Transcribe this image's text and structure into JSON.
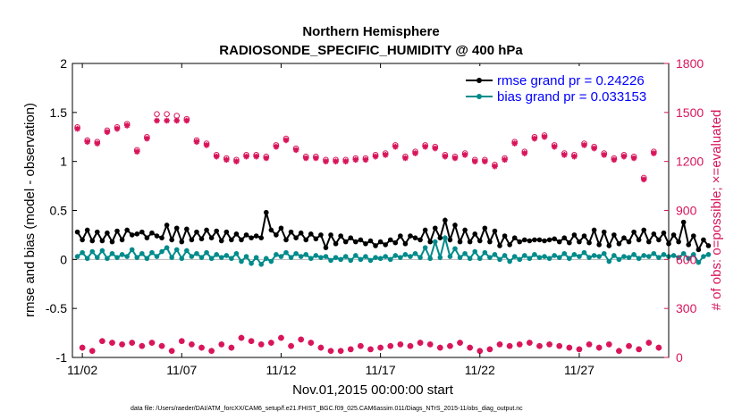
{
  "chart_data": {
    "type": "line",
    "title": "Northern Hemisphere",
    "subtitle": "RADIOSONDE_SPECIFIC_HUMIDITY @ 400 hPa",
    "xlabel": "Nov.01,2015 00:00:00 start",
    "ylabel": "rmse and bias (model - observation)",
    "y2label": "# of obs: o=possible; ×=evaluated",
    "footnote": "data file: /Users/raeder/DAI/ATM_forcXX/CAM6_setup/f.e21.FHIST_BGC.f09_025.CAM6assim.011/Diags_NTrS_2015-11/obs_diag_output.nc",
    "xlim": [
      0.5,
      30.5
    ],
    "ylim": [
      -1,
      2
    ],
    "y2lim": [
      0,
      1800
    ],
    "x_ticks": [
      1,
      6,
      11,
      16,
      21,
      26
    ],
    "x_tick_labels": [
      "11/02",
      "11/07",
      "11/12",
      "11/17",
      "11/22",
      "11/27"
    ],
    "y_ticks": [
      "-1",
      "-0.5",
      "0",
      "0.5",
      "1",
      "1.5",
      "2"
    ],
    "y2_ticks": [
      "0",
      "300",
      "600",
      "900",
      "1200",
      "1500",
      "1800"
    ],
    "legend_position": "top-right",
    "colors": {
      "rmse": "#000000",
      "bias": "#008b8b",
      "obs": "#d8145a",
      "legend_text": "#0000ff",
      "zero_line": "#b4b4b4"
    },
    "series": [
      {
        "name": "rmse grand pr = 0.24226",
        "values": [
          0.28,
          0.2,
          0.3,
          0.19,
          0.28,
          0.19,
          0.27,
          0.18,
          0.29,
          0.2,
          0.3,
          0.25,
          0.26,
          0.28,
          0.22,
          0.27,
          0.24,
          0.22,
          0.35,
          0.2,
          0.32,
          0.18,
          0.31,
          0.2,
          0.28,
          0.21,
          0.3,
          0.22,
          0.29,
          0.19,
          0.28,
          0.2,
          0.26,
          0.2,
          0.25,
          0.22,
          0.24,
          0.22,
          0.48,
          0.3,
          0.25,
          0.32,
          0.2,
          0.28,
          0.22,
          0.27,
          0.2,
          0.26,
          0.21,
          0.25,
          0.12,
          0.25,
          0.16,
          0.24,
          0.18,
          0.22,
          0.18,
          0.2,
          0.16,
          0.19,
          0.14,
          0.18,
          0.15,
          0.2,
          0.17,
          0.24,
          0.16,
          0.24,
          0.22,
          0.2,
          0.3,
          0.18,
          0.32,
          0.22,
          0.4,
          0.2,
          0.35,
          0.18,
          0.3,
          0.18,
          0.26,
          0.19,
          0.32,
          0.18,
          0.29,
          0.14,
          0.24,
          0.15,
          0.22,
          0.18,
          0.2,
          0.19,
          0.2,
          0.2,
          0.19,
          0.2,
          0.21,
          0.18,
          0.22,
          0.17,
          0.25,
          0.18,
          0.24,
          0.17,
          0.3,
          0.15,
          0.28,
          0.14,
          0.25,
          0.16,
          0.22,
          0.18,
          0.28,
          0.2,
          0.3,
          0.18,
          0.26,
          0.2,
          0.27,
          0.16,
          0.25,
          0.18,
          0.38,
          0.15,
          0.24,
          0.1,
          0.2,
          0.14
        ]
      },
      {
        "name": "bias grand pr = 0.033153",
        "values": [
          0.03,
          0.07,
          0.01,
          0.08,
          0.02,
          0.09,
          0.01,
          0.06,
          0.02,
          0.05,
          0.03,
          0.1,
          0.02,
          0.06,
          0.01,
          0.07,
          0.03,
          0.08,
          0.12,
          0.02,
          0.1,
          0.01,
          0.09,
          0.03,
          0.06,
          0.02,
          0.07,
          0.01,
          0.05,
          0.02,
          0.04,
          0.01,
          0.06,
          -0.02,
          0.03,
          -0.04,
          0.02,
          -0.05,
          0.01,
          -0.02,
          0.05,
          0.03,
          0.07,
          0.02,
          0.06,
          0.03,
          0.05,
          0.01,
          0.04,
          0.02,
          0.03,
          -0.01,
          0.02,
          0.0,
          0.03,
          -0.01,
          0.04,
          0.0,
          0.03,
          -0.01,
          0.02,
          0.01,
          0.03,
          0.0,
          0.04,
          0.02,
          0.05,
          0.03,
          0.06,
          0.02,
          0.12,
          0.01,
          0.18,
          0.02,
          0.22,
          0.03,
          0.11,
          0.02,
          0.06,
          0.01,
          0.08,
          0.01,
          0.07,
          0.02,
          0.05,
          0.0,
          0.04,
          -0.02,
          0.03,
          0.0,
          0.04,
          0.01,
          0.05,
          0.02,
          0.03,
          0.01,
          0.04,
          0.02,
          0.06,
          0.01,
          0.05,
          0.03,
          0.07,
          0.02,
          0.04,
          0.03,
          0.06,
          -0.02,
          0.04,
          0.0,
          0.03,
          0.02,
          0.05,
          0.01,
          0.04,
          0.03,
          0.06,
          0.02,
          0.05,
          0.03,
          0.04,
          0.02,
          0.06,
          0.01,
          0.05,
          -0.03,
          0.03,
          0.05
        ]
      },
      {
        "name": "# of obs evaluated",
        "axis": "right",
        "values": [
          1400,
          60,
          1320,
          40,
          1310,
          100,
          1380,
          90,
          1400,
          80,
          1420,
          90,
          1260,
          70,
          1340,
          90,
          1450,
          70,
          1450,
          40,
          1450,
          100,
          1450,
          80,
          1320,
          60,
          1300,
          40,
          1230,
          80,
          1210,
          60,
          1200,
          120,
          1230,
          100,
          1230,
          80,
          1220,
          90,
          1290,
          120,
          1330,
          70,
          1270,
          110,
          1220,
          90,
          1220,
          60,
          1200,
          40,
          1200,
          40,
          1200,
          50,
          1210,
          70,
          1210,
          50,
          1230,
          60,
          1240,
          70,
          1290,
          80,
          1220,
          70,
          1250,
          90,
          1290,
          80,
          1280,
          60,
          1230,
          70,
          1220,
          90,
          1240,
          60,
          1200,
          40,
          1200,
          50,
          1170,
          80,
          1210,
          70,
          1310,
          80,
          1250,
          90,
          1340,
          70,
          1350,
          80,
          1290,
          70,
          1240,
          60,
          1230,
          50,
          1300,
          80,
          1280,
          60,
          1240,
          80,
          1210,
          40,
          1230,
          70,
          1220,
          50,
          1090,
          90,
          1250,
          60
        ]
      },
      {
        "name": "# of obs possible",
        "axis": "right",
        "values": [
          1410,
          60,
          1330,
          40,
          1320,
          100,
          1390,
          90,
          1410,
          80,
          1430,
          90,
          1270,
          70,
          1350,
          90,
          1490,
          70,
          1490,
          40,
          1480,
          100,
          1460,
          80,
          1330,
          60,
          1310,
          40,
          1240,
          80,
          1220,
          60,
          1210,
          120,
          1240,
          100,
          1240,
          80,
          1230,
          90,
          1300,
          120,
          1340,
          70,
          1280,
          110,
          1230,
          90,
          1230,
          60,
          1210,
          40,
          1210,
          40,
          1210,
          50,
          1220,
          70,
          1220,
          50,
          1240,
          60,
          1250,
          70,
          1300,
          80,
          1230,
          70,
          1260,
          90,
          1300,
          80,
          1290,
          60,
          1240,
          70,
          1230,
          90,
          1250,
          60,
          1210,
          40,
          1210,
          50,
          1180,
          80,
          1220,
          70,
          1320,
          80,
          1260,
          90,
          1350,
          70,
          1360,
          80,
          1300,
          70,
          1250,
          60,
          1240,
          50,
          1310,
          80,
          1290,
          60,
          1250,
          80,
          1220,
          40,
          1240,
          70,
          1230,
          50,
          1100,
          90,
          1260,
          60
        ]
      }
    ]
  }
}
